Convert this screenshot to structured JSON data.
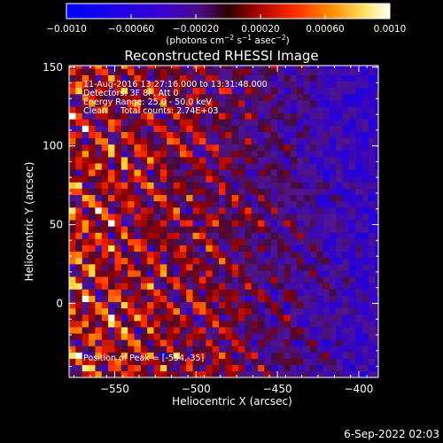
{
  "chart_data": {
    "type": "heatmap",
    "title": "Reconstructed RHESSI Image",
    "xlabel": "Heliocentric X (arcsec)",
    "ylabel": "Heliocentric Y (arcsec)",
    "xlim": [
      -578,
      -388
    ],
    "ylim": [
      -47,
      151
    ],
    "x_ticks": [
      -550,
      -500,
      -450,
      -400
    ],
    "y_ticks": [
      0,
      50,
      100,
      150
    ],
    "x_tick_labels": [
      "−550",
      "−500",
      "−450",
      "−400"
    ],
    "y_tick_labels": [
      "0",
      "50",
      "100",
      "150"
    ],
    "colorbar": {
      "range": [
        -0.001,
        0.001
      ],
      "ticks": [
        -0.001,
        -0.0006,
        -0.0002,
        0.0002,
        0.0006,
        0.001
      ],
      "tick_labels": [
        "−0.0010",
        "−0.00060",
        "−0.00020",
        "0.00020",
        "0.00060",
        "0.0010"
      ],
      "unit_text": "(photons cm",
      "unit_sup1": "−2",
      "unit_mid": " s",
      "unit_sup2": "−1",
      "unit_mid2": " asec",
      "unit_sup3": "−2",
      "unit_end": ")"
    },
    "annotations": [
      "11-Aug-2016 13:27:16.000 to 13:31:48.000",
      "Detectors: 3F 8F, Att 0",
      "Energy Range: 25.0 - 50.0 keV",
      "Clean     Total counts: 2.74E+03"
    ],
    "peak_label": "Position of Peak = [-554,-35]",
    "peak_position": [
      -554,
      -35
    ],
    "pixel_size_arcsec": 4,
    "image_note": "clean image of interleaved bright (red/yellow) and negative (blue/purple) fringes; brighter toward lower-left, bluer toward right"
  },
  "timestamp": "6-Sep-2022 02:03",
  "colors": {
    "background": "#000000",
    "foreground": "#ffffff",
    "colormap": [
      "#0000ff",
      "#4b00b0",
      "#5a1a8a",
      "#b00000",
      "#ff2000",
      "#ff8000",
      "#ffe040",
      "#ffffff"
    ]
  }
}
